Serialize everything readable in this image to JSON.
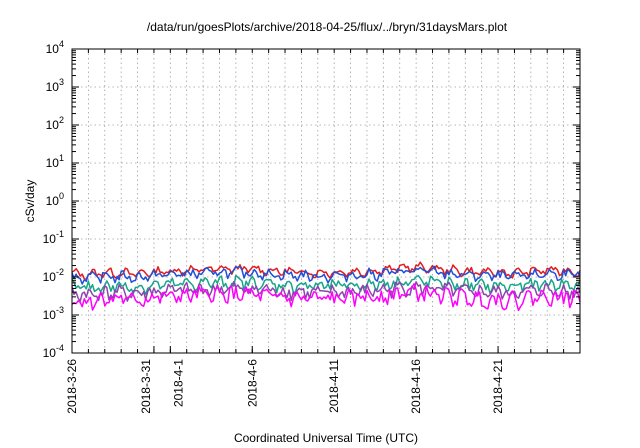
{
  "chart_data": {
    "type": "line",
    "title": "/data/run/goesPlots/archive/2018-04-25/flux/../bryn/31daysMars.plot",
    "xlabel": "Coordinated Universal Time (UTC)",
    "ylabel": "cSv/day",
    "yscale": "log",
    "ylim": [
      0.0001,
      10000
    ],
    "y_ticks": [
      {
        "value": 0.0001,
        "base": "10",
        "exp": "-4"
      },
      {
        "value": 0.001,
        "base": "10",
        "exp": "-3"
      },
      {
        "value": 0.01,
        "base": "10",
        "exp": "-2"
      },
      {
        "value": 0.1,
        "base": "10",
        "exp": "-1"
      },
      {
        "value": 1,
        "base": "10",
        "exp": "0"
      },
      {
        "value": 10,
        "base": "10",
        "exp": "1"
      },
      {
        "value": 100,
        "base": "10",
        "exp": "2"
      },
      {
        "value": 1000,
        "base": "10",
        "exp": "3"
      },
      {
        "value": 10000,
        "base": "10",
        "exp": "4"
      }
    ],
    "xlim": [
      "2018-03-26",
      "2018-04-26"
    ],
    "x_ticks": [
      "2018-3-26",
      "2018-3-31",
      "2018-4-1",
      "2018-4-6",
      "2018-4-11",
      "2018-4-16",
      "2018-4-21"
    ],
    "x_tick_dates": [
      "2018-03-26",
      "2018-03-31",
      "2018-04-01",
      "2018-04-06",
      "2018-04-11",
      "2018-04-16",
      "2018-04-21"
    ],
    "grid": true,
    "legend": "none",
    "x": [
      "2018-03-26",
      "2018-03-27",
      "2018-03-28",
      "2018-03-29",
      "2018-03-30",
      "2018-03-31",
      "2018-04-01",
      "2018-04-02",
      "2018-04-03",
      "2018-04-04",
      "2018-04-05",
      "2018-04-06",
      "2018-04-07",
      "2018-04-08",
      "2018-04-09",
      "2018-04-10",
      "2018-04-11",
      "2018-04-12",
      "2018-04-13",
      "2018-04-14",
      "2018-04-15",
      "2018-04-16",
      "2018-04-17",
      "2018-04-18",
      "2018-04-19",
      "2018-04-20",
      "2018-04-21",
      "2018-04-22",
      "2018-04-23",
      "2018-04-24",
      "2018-04-25",
      "2018-04-26"
    ],
    "series": [
      {
        "color": "#e41a1c",
        "values": [
          0.0125,
          0.0118,
          0.0132,
          0.0128,
          0.0122,
          0.0138,
          0.0145,
          0.0152,
          0.0158,
          0.0163,
          0.0166,
          0.0162,
          0.0149,
          0.0141,
          0.0137,
          0.0131,
          0.0134,
          0.0138,
          0.0142,
          0.0155,
          0.0174,
          0.0182,
          0.0171,
          0.0153,
          0.0142,
          0.0136,
          0.0131,
          0.0128,
          0.0142,
          0.0153,
          0.0148,
          0.0139
        ]
      },
      {
        "color": "#1f4fd8",
        "values": [
          0.0102,
          0.0096,
          0.0108,
          0.0104,
          0.0099,
          0.0112,
          0.0118,
          0.0124,
          0.0129,
          0.0133,
          0.0136,
          0.0132,
          0.0121,
          0.0115,
          0.0111,
          0.0106,
          0.0109,
          0.0112,
          0.0116,
          0.0126,
          0.0142,
          0.0149,
          0.0139,
          0.0124,
          0.0115,
          0.011,
          0.0106,
          0.0104,
          0.0115,
          0.0124,
          0.012,
          0.0113
        ]
      },
      {
        "color": "#17a589",
        "values": [
          0.0056,
          0.0052,
          0.0059,
          0.0057,
          0.0054,
          0.0061,
          0.0064,
          0.0067,
          0.007,
          0.0072,
          0.0074,
          0.0072,
          0.0066,
          0.0063,
          0.0061,
          0.0058,
          0.006,
          0.0062,
          0.0064,
          0.0069,
          0.0077,
          0.008,
          0.0075,
          0.0067,
          0.0063,
          0.006,
          0.0058,
          0.0057,
          0.0063,
          0.0067,
          0.0065,
          0.0061
        ]
      },
      {
        "color": "#8e44ad",
        "values": [
          0.0038,
          0.0035,
          0.004,
          0.0039,
          0.0037,
          0.0042,
          0.0044,
          0.0046,
          0.0048,
          0.0049,
          0.005,
          0.0049,
          0.0045,
          0.0043,
          0.0041,
          0.0039,
          0.004,
          0.0042,
          0.0043,
          0.0047,
          0.0052,
          0.0054,
          0.0051,
          0.0046,
          0.0043,
          0.0041,
          0.004,
          0.0039,
          0.0043,
          0.0046,
          0.0044,
          0.0041
        ]
      },
      {
        "color": "#ff00ff",
        "values": [
          0.0026,
          0.0023,
          0.0028,
          0.0027,
          0.0025,
          0.0029,
          0.0031,
          0.0033,
          0.0035,
          0.0036,
          0.0037,
          0.0035,
          0.0031,
          0.0029,
          0.0028,
          0.0027,
          0.0028,
          0.0029,
          0.0031,
          0.0034,
          0.0039,
          0.0041,
          0.0037,
          0.0032,
          0.0029,
          0.0028,
          0.0027,
          0.0026,
          0.003,
          0.0033,
          0.0031,
          0.0029
        ]
      }
    ]
  }
}
